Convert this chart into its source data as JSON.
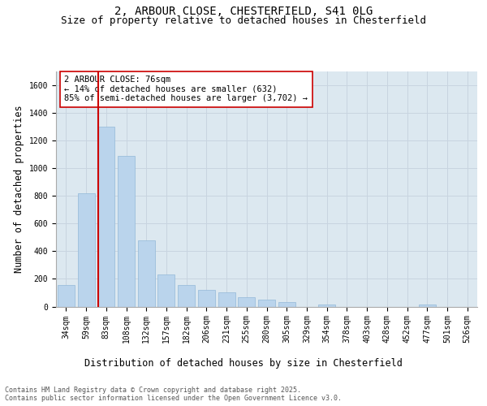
{
  "title_line1": "2, ARBOUR CLOSE, CHESTERFIELD, S41 0LG",
  "title_line2": "Size of property relative to detached houses in Chesterfield",
  "xlabel": "Distribution of detached houses by size in Chesterfield",
  "ylabel": "Number of detached properties",
  "categories": [
    "34sqm",
    "59sqm",
    "83sqm",
    "108sqm",
    "132sqm",
    "157sqm",
    "182sqm",
    "206sqm",
    "231sqm",
    "255sqm",
    "280sqm",
    "305sqm",
    "329sqm",
    "354sqm",
    "378sqm",
    "403sqm",
    "428sqm",
    "452sqm",
    "477sqm",
    "501sqm",
    "526sqm"
  ],
  "values": [
    155,
    820,
    1300,
    1090,
    480,
    230,
    155,
    120,
    100,
    70,
    50,
    30,
    0,
    15,
    0,
    0,
    0,
    0,
    15,
    0,
    0
  ],
  "bar_color": "#bad4ec",
  "bar_edge_color": "#93b8d8",
  "vline_color": "#cc0000",
  "vline_pos": 1.62,
  "annotation_text": "2 ARBOUR CLOSE: 76sqm\n← 14% of detached houses are smaller (632)\n85% of semi-detached houses are larger (3,702) →",
  "annotation_box_color": "white",
  "annotation_box_edge_color": "#cc0000",
  "ylim": [
    0,
    1700
  ],
  "yticks": [
    0,
    200,
    400,
    600,
    800,
    1000,
    1200,
    1400,
    1600
  ],
  "grid_color": "#c8d4e0",
  "background_color": "#dce8f0",
  "footer_text": "Contains HM Land Registry data © Crown copyright and database right 2025.\nContains public sector information licensed under the Open Government Licence v3.0.",
  "title_fontsize": 10,
  "subtitle_fontsize": 9,
  "axis_label_fontsize": 8.5,
  "tick_fontsize": 7,
  "annotation_fontsize": 7.5,
  "footer_fontsize": 6
}
